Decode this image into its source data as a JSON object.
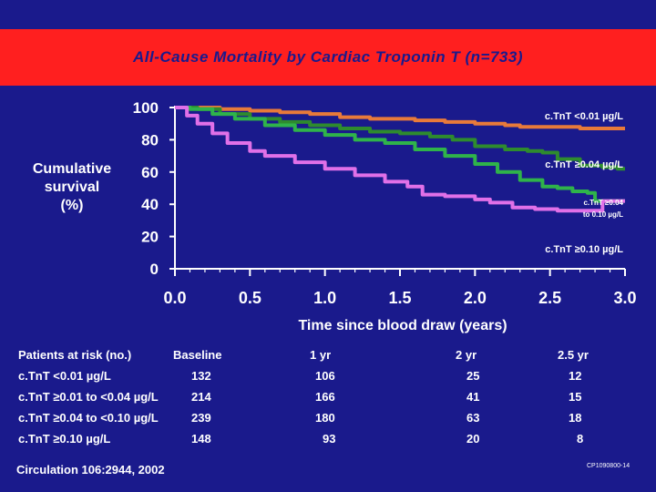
{
  "slide": {
    "title": "All-Cause Mortality by Cardiac Troponin T (n=733)",
    "ylabel_lines": [
      "Cumulative",
      "survival",
      "(%)"
    ],
    "citation": "Circulation 106:2944, 2002",
    "code": "CP1090800-14",
    "colors": {
      "background": "#1a1a8c",
      "title_band": "#ff1f1f",
      "title_text": "#1a1a8c"
    }
  },
  "chart_data": {
    "type": "line",
    "xlabel": "Time since blood draw (years)",
    "ylabel": "Cumulative survival (%)",
    "xlim": [
      0,
      3
    ],
    "ylim": [
      0,
      100
    ],
    "x_ticks": [
      "0.0",
      "0.5",
      "1.0",
      "1.5",
      "2.0",
      "2.5",
      "3.0"
    ],
    "y_ticks": [
      "100",
      "80",
      "60",
      "40",
      "20",
      "0"
    ],
    "series": [
      {
        "name": "c.TnT <0.01 µg/L",
        "label_lines": [
          "c.TnT <0.01 µg/L"
        ],
        "color": "#e87a3a",
        "points": [
          [
            0,
            100
          ],
          [
            0.2,
            100
          ],
          [
            0.3,
            99
          ],
          [
            0.5,
            98
          ],
          [
            0.7,
            97
          ],
          [
            0.9,
            96
          ],
          [
            1.1,
            94
          ],
          [
            1.3,
            93
          ],
          [
            1.5,
            93
          ],
          [
            1.6,
            92
          ],
          [
            1.8,
            91
          ],
          [
            2.0,
            90
          ],
          [
            2.2,
            89
          ],
          [
            2.3,
            88
          ],
          [
            2.5,
            88
          ],
          [
            2.7,
            87
          ],
          [
            2.9,
            87
          ],
          [
            3.0,
            87
          ]
        ]
      },
      {
        "name": "c.TnT ≥0.04 µg/L",
        "label_lines": [
          "c.TnT ≥0.04 µg/L"
        ],
        "color": "#2e8b2e",
        "points": [
          [
            0,
            100
          ],
          [
            0.15,
            99
          ],
          [
            0.3,
            96
          ],
          [
            0.5,
            93
          ],
          [
            0.7,
            91
          ],
          [
            0.9,
            89
          ],
          [
            1.1,
            87
          ],
          [
            1.3,
            85
          ],
          [
            1.5,
            84
          ],
          [
            1.7,
            82
          ],
          [
            1.85,
            80
          ],
          [
            2.0,
            76
          ],
          [
            2.2,
            74
          ],
          [
            2.35,
            73
          ],
          [
            2.45,
            72
          ],
          [
            2.55,
            68
          ],
          [
            2.7,
            64
          ],
          [
            2.85,
            63
          ],
          [
            2.95,
            62
          ],
          [
            3.0,
            62
          ]
        ]
      },
      {
        "name": "c.TnT ≥0.04 to 0.10 µg/L",
        "label_lines": [
          "c.TnT ≥0.04",
          "to 0.10 µg/L"
        ],
        "color": "#2fb34a",
        "points": [
          [
            0,
            100
          ],
          [
            0.1,
            99
          ],
          [
            0.25,
            96
          ],
          [
            0.4,
            93
          ],
          [
            0.6,
            89
          ],
          [
            0.8,
            86
          ],
          [
            1.0,
            83
          ],
          [
            1.2,
            80
          ],
          [
            1.4,
            78
          ],
          [
            1.6,
            74
          ],
          [
            1.8,
            70
          ],
          [
            2.0,
            65
          ],
          [
            2.15,
            60
          ],
          [
            2.3,
            55
          ],
          [
            2.45,
            51
          ],
          [
            2.55,
            50
          ],
          [
            2.65,
            48
          ],
          [
            2.75,
            47
          ],
          [
            2.8,
            42
          ],
          [
            3.0,
            42
          ]
        ]
      },
      {
        "name": "c.TnT ≥0.10 µg/L",
        "label_lines": [
          "c.TnT ≥0.10 µg/L"
        ],
        "color": "#e070e8",
        "points": [
          [
            0,
            100
          ],
          [
            0.08,
            95
          ],
          [
            0.15,
            90
          ],
          [
            0.25,
            84
          ],
          [
            0.35,
            78
          ],
          [
            0.5,
            73
          ],
          [
            0.6,
            70
          ],
          [
            0.8,
            66
          ],
          [
            1.0,
            62
          ],
          [
            1.2,
            58
          ],
          [
            1.4,
            54
          ],
          [
            1.55,
            51
          ],
          [
            1.65,
            46
          ],
          [
            1.8,
            45
          ],
          [
            2.0,
            43
          ],
          [
            2.1,
            41
          ],
          [
            2.25,
            38
          ],
          [
            2.4,
            37
          ],
          [
            2.55,
            36
          ],
          [
            2.75,
            36
          ],
          [
            2.85,
            42
          ],
          [
            2.95,
            42
          ],
          [
            3.0,
            42
          ]
        ]
      }
    ]
  },
  "risk_table": {
    "headers": [
      "Patients at risk (no.)",
      "Baseline",
      "1 yr",
      "2 yr",
      "2.5 yr"
    ],
    "rows": [
      {
        "label": "c.TnT <0.01 µg/L",
        "values": [
          "132",
          "106",
          "25",
          "12"
        ]
      },
      {
        "label": "c.TnT ≥0.01 to <0.04 µg/L",
        "values": [
          "214",
          "166",
          "41",
          "15"
        ]
      },
      {
        "label": "c.TnT ≥0.04 to <0.10 µg/L",
        "values": [
          "239",
          "180",
          "63",
          "18"
        ]
      },
      {
        "label": "c.TnT ≥0.10 µg/L",
        "values": [
          "148",
          "93",
          "20",
          "8"
        ]
      }
    ]
  }
}
